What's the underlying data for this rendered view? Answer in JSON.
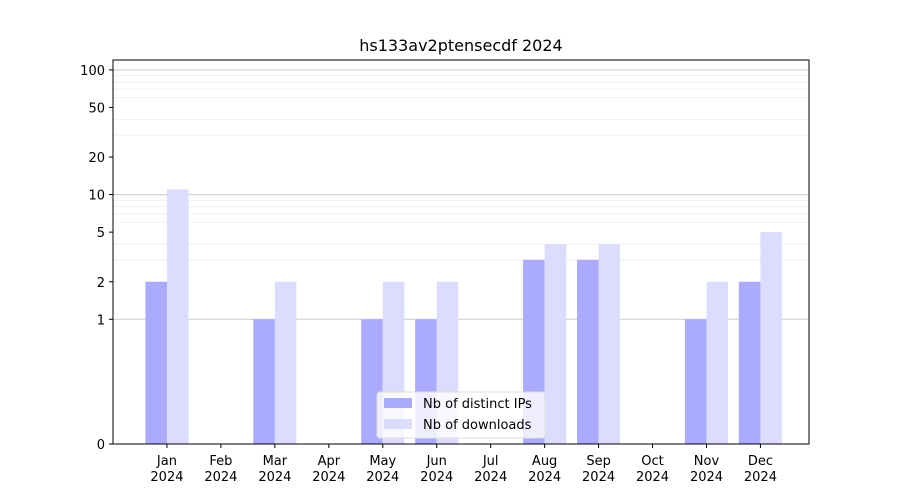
{
  "chart_data": {
    "type": "bar",
    "title": "hs133av2ptensecdf 2024",
    "xlabel": "",
    "ylabel": "",
    "y_scale": "symlog",
    "ylim": [
      0,
      120
    ],
    "y_ticks": [
      0,
      1,
      2,
      5,
      10,
      20,
      50,
      100
    ],
    "grid": "y",
    "legend_position": "bottom-center",
    "categories": [
      [
        "Jan",
        "2024"
      ],
      [
        "Feb",
        "2024"
      ],
      [
        "Mar",
        "2024"
      ],
      [
        "Apr",
        "2024"
      ],
      [
        "May",
        "2024"
      ],
      [
        "Jun",
        "2024"
      ],
      [
        "Jul",
        "2024"
      ],
      [
        "Aug",
        "2024"
      ],
      [
        "Sep",
        "2024"
      ],
      [
        "Oct",
        "2024"
      ],
      [
        "Nov",
        "2024"
      ],
      [
        "Dec",
        "2024"
      ]
    ],
    "series": [
      {
        "name": "Nb of distinct IPs",
        "color": "#aaaaff",
        "values": [
          2,
          0,
          1,
          0,
          1,
          1,
          0,
          3,
          3,
          0,
          1,
          2
        ]
      },
      {
        "name": "Nb of downloads",
        "color": "#dcdcff",
        "values": [
          11,
          0,
          2,
          0,
          2,
          2,
          0,
          4,
          4,
          0,
          2,
          5
        ]
      }
    ]
  }
}
